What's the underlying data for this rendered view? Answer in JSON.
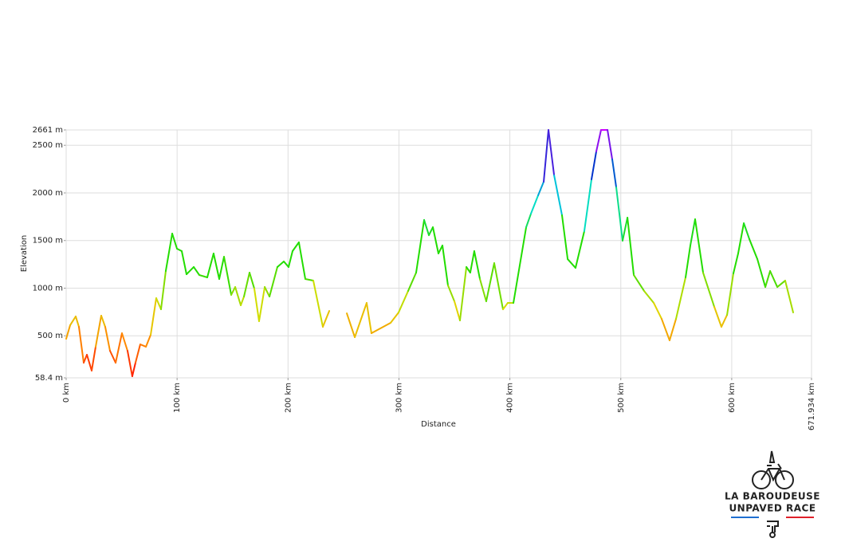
{
  "chart_data": {
    "type": "line",
    "xlabel": "Distance",
    "ylabel": "Elevation",
    "x": [
      0,
      3.6,
      8.6,
      11.5,
      15.8,
      18.7,
      23,
      26.6,
      31.6,
      35.2,
      39.5,
      44.6,
      50.3,
      55.3,
      59.6,
      62.5,
      66.8,
      71.9,
      76.2,
      81.2,
      85.5,
      89.8,
      95.6,
      99.9,
      104.2,
      108.5,
      115,
      120,
      127.2,
      132.9,
      138,
      142.3,
      148.8,
      152.4,
      157.4,
      160.3,
      165.3,
      169.6,
      173.9,
      179,
      183.3,
      190.4,
      196.2,
      200.5,
      204.1,
      209.8,
      215.6,
      222.8,
      231.4,
      237.2,
      245,
      253,
      260.2,
      270.9,
      275.2,
      292.5,
      299.7,
      308.3,
      315.5,
      322.7,
      327,
      330.6,
      335.6,
      339.2,
      344.2,
      350,
      355,
      360.8,
      364.3,
      367.9,
      373,
      378.7,
      385.9,
      393.8,
      398.1,
      403.2,
      414.7,
      419,
      425.5,
      430.5,
      434.8,
      439.9,
      447,
      452.1,
      459.2,
      467.1,
      473.6,
      477.9,
      482.2,
      488,
      492.3,
      495.9,
      501.6,
      506,
      511.7,
      521,
      529.7,
      536.8,
      544,
      549.8,
      558.4,
      562.7,
      567,
      574.2,
      584.3,
      590.7,
      595.8,
      601.5,
      605.8,
      610.9,
      615.9,
      623.1,
      630.3,
      634.6,
      641.1,
      648.2,
      655.4
    ],
    "values": [
      468,
      611,
      703,
      594,
      217,
      301,
      134,
      385,
      711,
      594,
      343,
      217,
      527,
      343,
      75,
      217,
      410,
      385,
      510,
      895,
      778,
      1180,
      1573,
      1414,
      1389,
      1146,
      1222,
      1138,
      1113,
      1364,
      1096,
      1330,
      929,
      1012,
      820,
      912,
      1163,
      996,
      653,
      1012,
      912,
      1222,
      1280,
      1222,
      1389,
      1481,
      1096,
      1079,
      594,
      761,
      null,
      736,
      485,
      845,
      527,
      636,
      745,
      971,
      1163,
      1716,
      1556,
      1640,
      1364,
      1448,
      1029,
      862,
      661,
      1222,
      1163,
      1389,
      1096,
      862,
      1263,
      778,
      845,
      845,
      1640,
      1782,
      1975,
      2117,
      2661,
      2184,
      1766,
      1305,
      1213,
      1598,
      2142,
      2435,
      2661,
      2661,
      2351,
      2058,
      1498,
      1740,
      1138,
      971,
      845,
      678,
      452,
      678,
      1113,
      1448,
      1724,
      1163,
      803,
      594,
      719,
      1155,
      1364,
      1682,
      1515,
      1305,
      1012,
      1180,
      1012,
      1079,
      745
    ],
    "color_scale": [
      "#ff0000",
      "#ff8800",
      "#dddd00",
      "#22dd00",
      "#22dd00",
      "#00dddd",
      "#0033cc",
      "#cc00ff"
    ],
    "xlim": [
      0,
      671.934
    ],
    "xticks": [
      {
        "value": 0,
        "label": "0 km"
      },
      {
        "value": 100,
        "label": "100 km"
      },
      {
        "value": 200,
        "label": "200 km"
      },
      {
        "value": 300,
        "label": "300 km"
      },
      {
        "value": 400,
        "label": "400 km"
      },
      {
        "value": 500,
        "label": "500 km"
      },
      {
        "value": 600,
        "label": "600 km"
      },
      {
        "value": 671.934,
        "label": "671.934 km"
      }
    ],
    "ylim": [
      58.4,
      2661
    ],
    "yticks": [
      {
        "value": 58.4,
        "label": "58.4 m"
      },
      {
        "value": 500,
        "label": "500 m"
      },
      {
        "value": 1000,
        "label": "1000 m"
      },
      {
        "value": 1500,
        "label": "1500 m"
      },
      {
        "value": 2000,
        "label": "2000 m"
      },
      {
        "value": 2500,
        "label": "2500 m"
      },
      {
        "value": 2661,
        "label": "2661 m"
      }
    ],
    "grid": true
  },
  "logo": {
    "line1": "LA BAROUDEUSE",
    "line2": "UNPAVED RACE"
  }
}
